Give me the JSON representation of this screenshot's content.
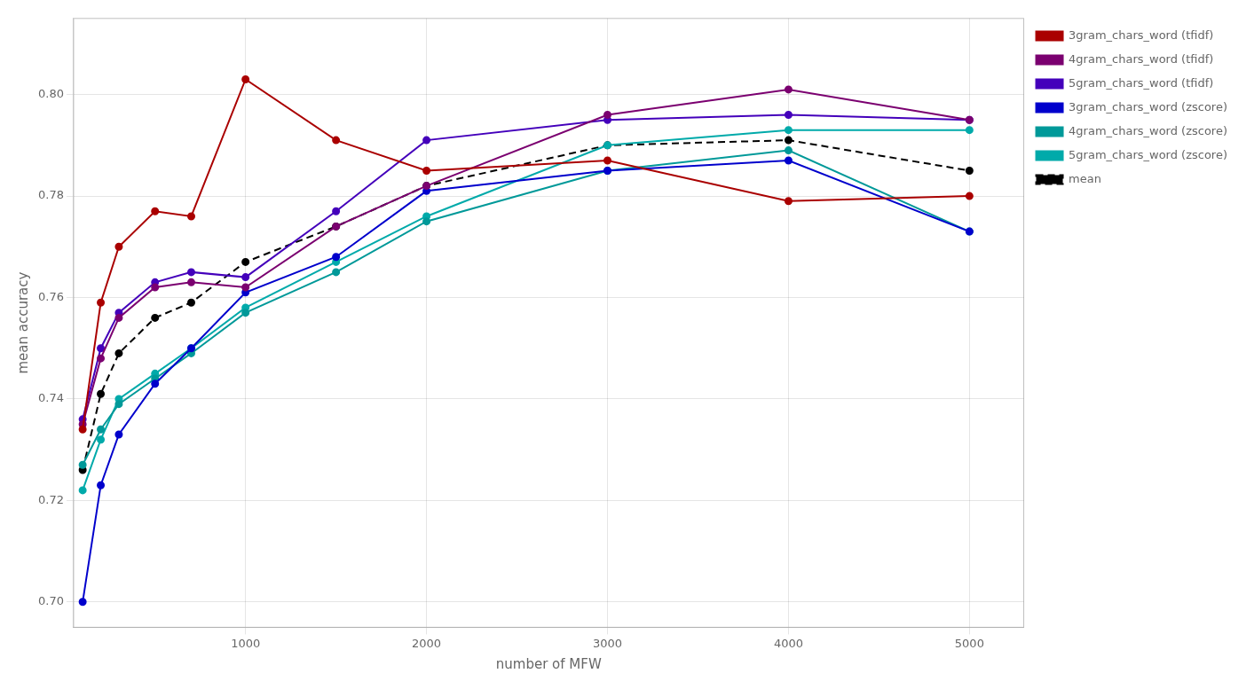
{
  "chart_data": {
    "type": "line",
    "xlabel": "number of MFW",
    "ylabel": "mean accuracy",
    "x": [
      100,
      200,
      300,
      500,
      700,
      1000,
      1500,
      2000,
      3000,
      4000,
      5000
    ],
    "series": [
      {
        "name": "3gram_chars_word (tfidf)",
        "color": "#aa0000",
        "marker": "circle",
        "line_style": "solid",
        "values": [
          0.734,
          0.759,
          0.77,
          0.777,
          0.776,
          0.803,
          0.791,
          0.785,
          0.787,
          0.779,
          0.78
        ]
      },
      {
        "name": "4gram_chars_word (tfidf)",
        "color": "#7b0070",
        "marker": "circle",
        "line_style": "solid",
        "values": [
          0.735,
          0.748,
          0.756,
          0.762,
          0.763,
          0.762,
          0.774,
          0.782,
          0.796,
          0.801,
          0.795
        ]
      },
      {
        "name": "5gram_chars_word (tfidf)",
        "color": "#4400bb",
        "marker": "circle",
        "line_style": "solid",
        "values": [
          0.736,
          0.75,
          0.757,
          0.763,
          0.765,
          0.764,
          0.777,
          0.791,
          0.795,
          0.796,
          0.795
        ]
      },
      {
        "name": "3gram_chars_word (zscore)",
        "color": "#0000cc",
        "marker": "circle",
        "line_style": "solid",
        "values": [
          0.7,
          0.723,
          0.733,
          0.743,
          0.75,
          0.761,
          0.768,
          0.781,
          0.785,
          0.787,
          0.773
        ]
      },
      {
        "name": "4gram_chars_word (zscore)",
        "color": "#009999",
        "marker": "circle",
        "line_style": "solid",
        "values": [
          0.727,
          0.734,
          0.739,
          0.744,
          0.749,
          0.757,
          0.765,
          0.775,
          0.785,
          0.789,
          0.773
        ]
      },
      {
        "name": "5gram_chars_word (zscore)",
        "color": "#00aaaa",
        "marker": "circle",
        "line_style": "solid",
        "values": [
          0.722,
          0.732,
          0.74,
          0.745,
          0.75,
          0.758,
          0.767,
          0.776,
          0.79,
          0.793,
          0.793
        ]
      },
      {
        "name": "mean",
        "color": "#000000",
        "marker": "circle",
        "line_style": "dashed",
        "values": [
          0.726,
          0.741,
          0.749,
          0.756,
          0.759,
          0.767,
          0.774,
          0.782,
          0.79,
          0.791,
          0.785
        ]
      }
    ],
    "xlim": [
      50,
      5300
    ],
    "xticks": [
      1000,
      2000,
      3000,
      4000,
      5000
    ],
    "ylim": [
      0.695,
      0.815
    ],
    "yticks": [
      {
        "value": 0.7,
        "label": "0.70"
      },
      0.72,
      0.74,
      0.76,
      0.78,
      {
        "value": 0.8,
        "label": "0.80"
      }
    ],
    "grid": true,
    "legend": "right"
  }
}
